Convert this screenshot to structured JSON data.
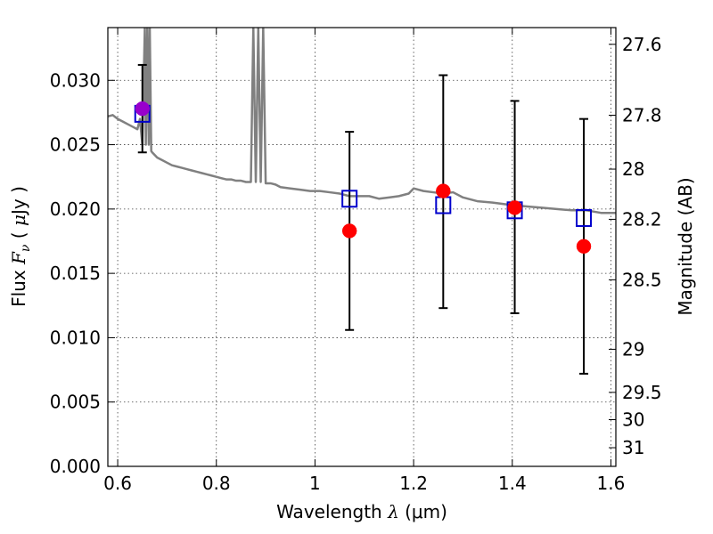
{
  "chart_data": {
    "type": "scatter",
    "title": "",
    "xlabel_main": "Wavelength  ",
    "xlabel_symbol": "λ",
    "xlabel_unit": " (μm)",
    "ylabel_left_parts": [
      "Flux  ",
      "F",
      "ν",
      "  ( ",
      "μ",
      "Jy )"
    ],
    "ylabel_right": "Magnitude (AB)",
    "xlim": [
      0.58,
      1.61
    ],
    "ylim": [
      0.0,
      0.0341
    ],
    "grid": true,
    "x_ticks": [
      0.6,
      0.8,
      1.0,
      1.2,
      1.4,
      1.6
    ],
    "x_tick_labels": [
      "0.6",
      "0.8",
      "1",
      "1.2",
      "1.4",
      "1.6"
    ],
    "y_ticks": [
      0.0,
      0.005,
      0.01,
      0.015,
      0.02,
      0.025,
      0.03
    ],
    "y_tick_labels": [
      "0.000",
      "0.005",
      "0.010",
      "0.015",
      "0.020",
      "0.025",
      "0.030"
    ],
    "right_ticks": [
      {
        "flux": 0.0328,
        "label": "27.6"
      },
      {
        "flux": 0.02729,
        "label": "27.8"
      },
      {
        "flux": 0.0231,
        "label": "28"
      },
      {
        "flux": 0.0192,
        "label": "28.2"
      },
      {
        "flux": 0.0145,
        "label": "28.5"
      },
      {
        "flux": 0.0091,
        "label": "29"
      },
      {
        "flux": 0.00575,
        "label": "29.5"
      },
      {
        "flux": 0.00363,
        "label": "30"
      },
      {
        "flux": 0.00145,
        "label": "31"
      }
    ],
    "series": [
      {
        "kind": "line",
        "color": "#808080",
        "x": [
          0.58,
          0.59,
          0.6,
          0.61,
          0.62,
          0.63,
          0.64,
          0.645,
          0.65,
          0.655,
          0.657,
          0.66,
          0.663,
          0.665,
          0.668,
          0.67,
          0.675,
          0.68,
          0.69,
          0.7,
          0.71,
          0.72,
          0.73,
          0.74,
          0.75,
          0.76,
          0.77,
          0.78,
          0.79,
          0.8,
          0.81,
          0.82,
          0.83,
          0.84,
          0.85,
          0.86,
          0.87,
          0.875,
          0.88,
          0.885,
          0.89,
          0.895,
          0.9,
          0.91,
          0.92,
          0.93,
          0.95,
          0.97,
          0.99,
          1.01,
          1.03,
          1.05,
          1.07,
          1.09,
          1.11,
          1.13,
          1.15,
          1.17,
          1.19,
          1.2,
          1.22,
          1.24,
          1.26,
          1.28,
          1.3,
          1.33,
          1.36,
          1.4,
          1.43,
          1.46,
          1.49,
          1.52,
          1.55,
          1.58,
          1.6,
          1.61
        ],
        "y": [
          0.0272,
          0.0273,
          0.027,
          0.0268,
          0.0266,
          0.0264,
          0.0262,
          0.027,
          0.025,
          0.0341,
          0.025,
          0.0341,
          0.025,
          0.0341,
          0.0245,
          0.0244,
          0.0242,
          0.024,
          0.0238,
          0.0236,
          0.0234,
          0.0233,
          0.0232,
          0.0231,
          0.023,
          0.0229,
          0.0228,
          0.0227,
          0.0226,
          0.0225,
          0.0224,
          0.0223,
          0.0223,
          0.0222,
          0.0222,
          0.0221,
          0.0221,
          0.0341,
          0.0221,
          0.0341,
          0.0221,
          0.0341,
          0.022,
          0.022,
          0.0219,
          0.0217,
          0.0216,
          0.0215,
          0.0214,
          0.0214,
          0.0213,
          0.0212,
          0.021,
          0.021,
          0.021,
          0.0208,
          0.0209,
          0.021,
          0.0212,
          0.0216,
          0.0214,
          0.0213,
          0.0212,
          0.0213,
          0.0209,
          0.0206,
          0.0205,
          0.0203,
          0.0202,
          0.0201,
          0.02,
          0.0199,
          0.0199,
          0.0197,
          0.0197,
          0.0197
        ]
      },
      {
        "kind": "errorbar",
        "name": "",
        "marker": "circle",
        "color": "#ff0000",
        "x": [
          0.65,
          1.07,
          1.26,
          1.405,
          1.545
        ],
        "y": [
          0.0278,
          0.0183,
          0.0214,
          0.0201,
          0.0171
        ],
        "yerr_low": [
          0.0034,
          0.0077,
          0.0091,
          0.0082,
          0.0099
        ],
        "yerr_high": [
          0.0034,
          0.0077,
          0.009,
          0.0083,
          0.0099
        ],
        "first_point_color": "#9900cc"
      },
      {
        "kind": "scatter",
        "name": "",
        "marker": "open-square",
        "color": "#0000cc",
        "x": [
          0.65,
          1.07,
          1.26,
          1.405,
          1.545
        ],
        "y": [
          0.0274,
          0.0208,
          0.0203,
          0.0199,
          0.0193
        ]
      }
    ]
  }
}
